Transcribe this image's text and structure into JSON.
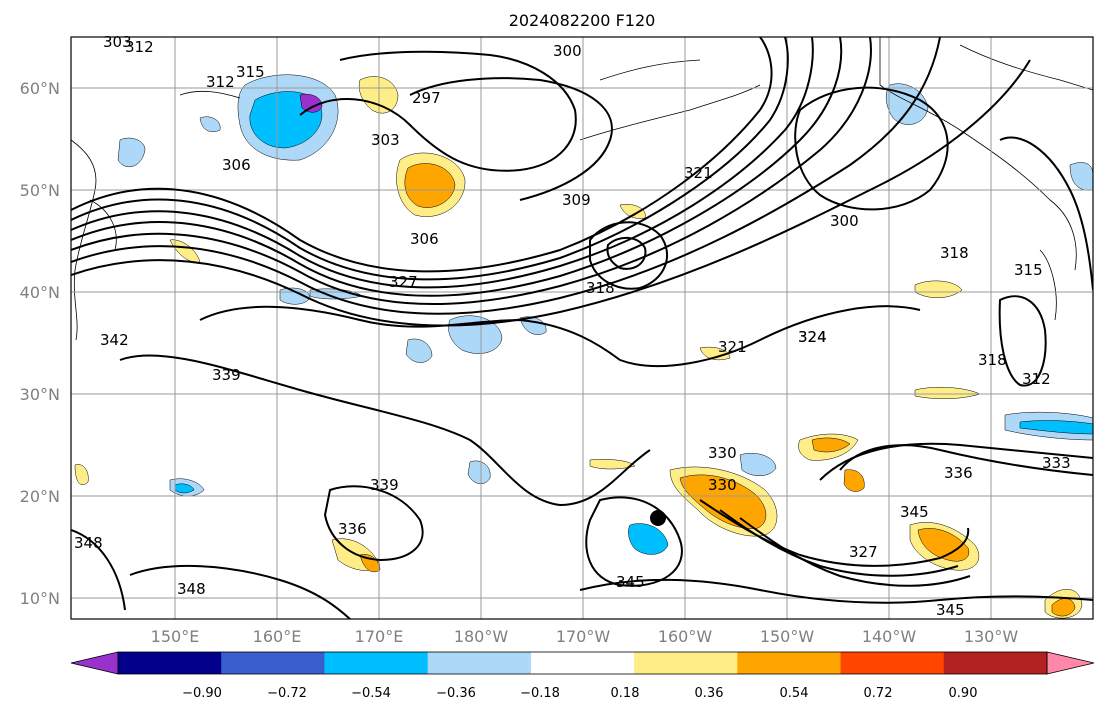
{
  "title": "2024082200 F120",
  "map": {
    "lat_labels": [
      "60°N",
      "50°N",
      "40°N",
      "30°N",
      "20°N",
      "10°N"
    ],
    "lon_labels": [
      "150°E",
      "160°E",
      "170°E",
      "180°W",
      "170°W",
      "160°W",
      "150°W",
      "140°W",
      "130°W"
    ],
    "contour_labels": [
      "303",
      "312",
      "315",
      "312",
      "306",
      "297",
      "300",
      "303",
      "309",
      "321",
      "300",
      "306",
      "318",
      "327",
      "318",
      "315",
      "324",
      "342",
      "339",
      "321",
      "324",
      "318",
      "312",
      "330",
      "336",
      "333",
      "339",
      "330",
      "336",
      "345",
      "348",
      "348",
      "345",
      "345",
      "327"
    ]
  },
  "colorbar": {
    "ticks": [
      "−0.90",
      "−0.72",
      "−0.54",
      "−0.36",
      "−0.18",
      "0.18",
      "0.36",
      "0.54",
      "0.72",
      "0.90"
    ],
    "colors": [
      "#9932cc",
      "#00008b",
      "#3a5fcd",
      "#00bfff",
      "#add8f8",
      "#ffffff",
      "#ffee88",
      "#ffa500",
      "#ff4500",
      "#b22222",
      "#ff88aa"
    ]
  }
}
